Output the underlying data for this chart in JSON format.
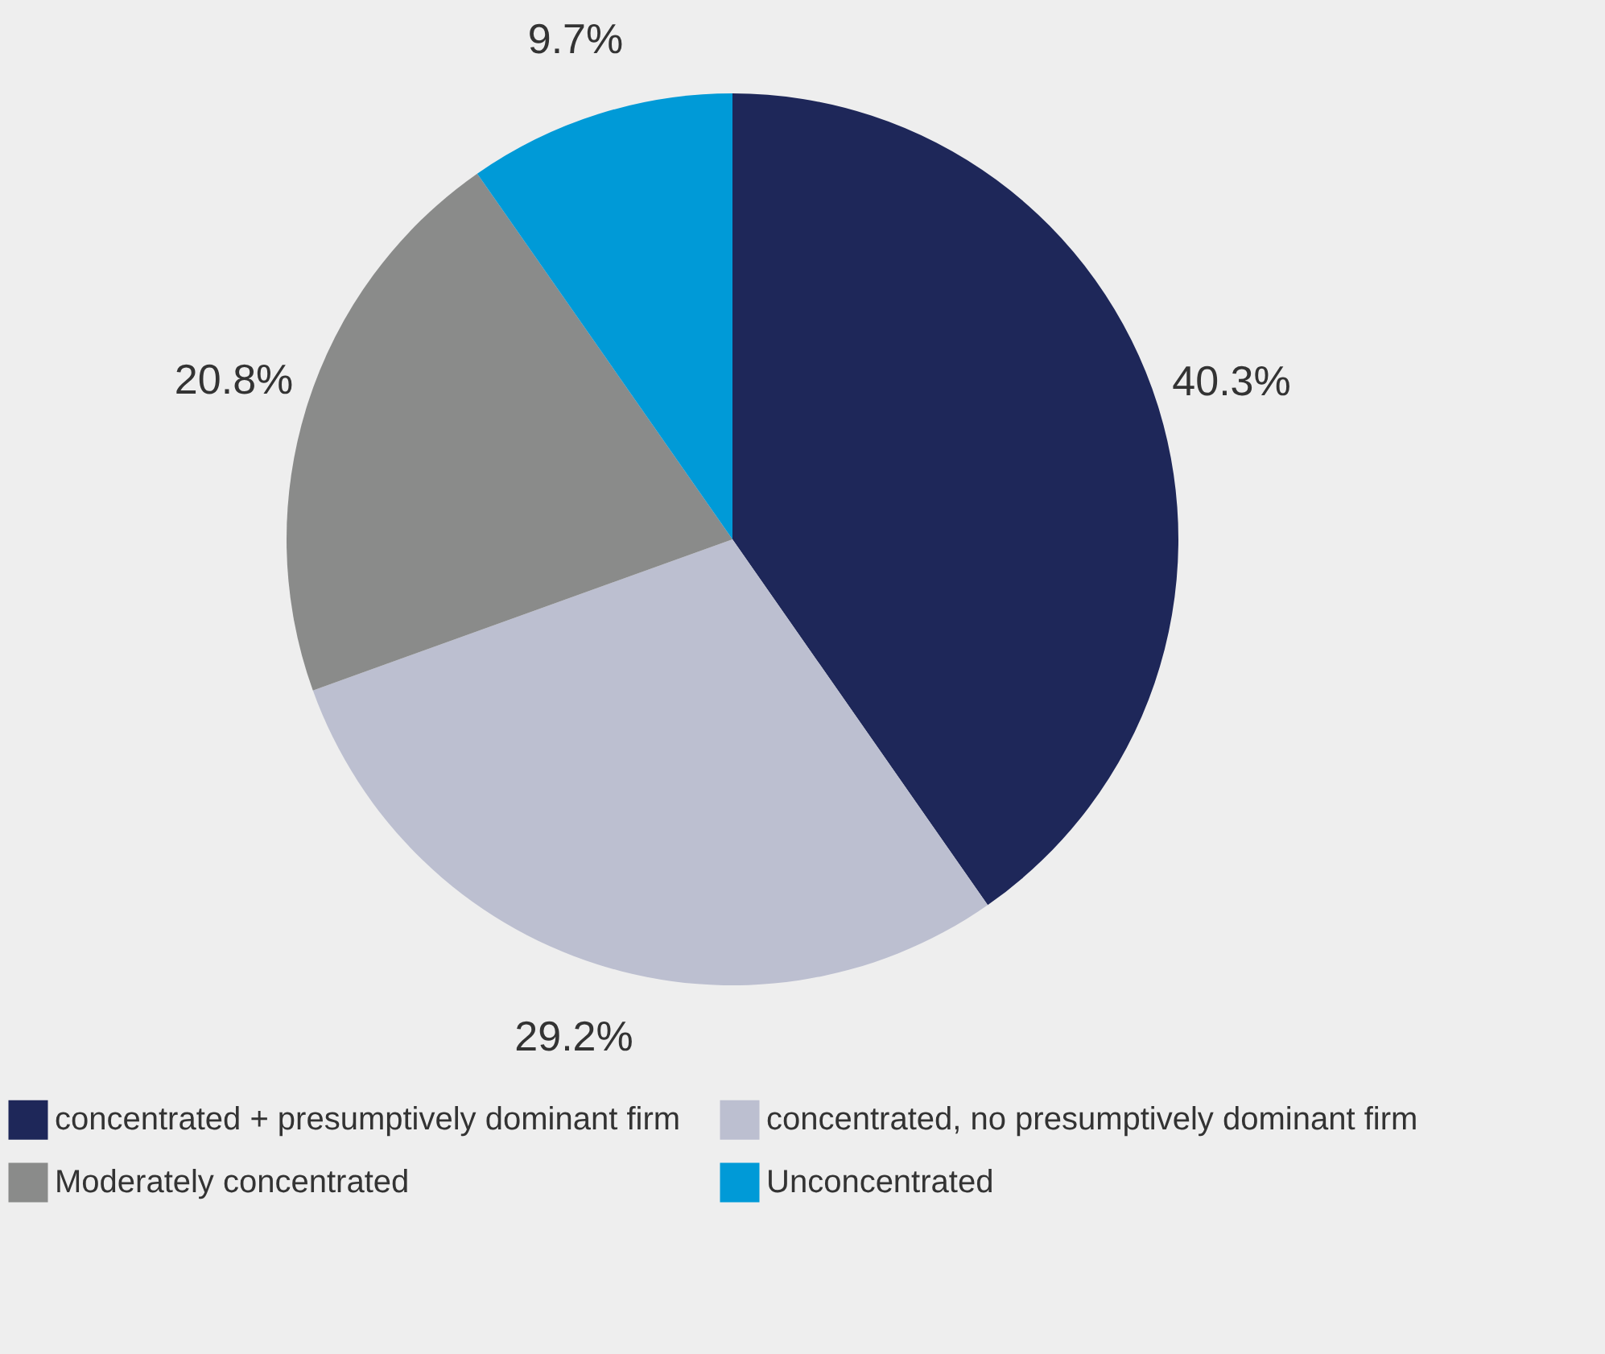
{
  "chart_data": {
    "type": "pie",
    "categories": [
      "concentrated + presumptively dominant firm",
      "concentrated, no presumptively dominant firm",
      "Moderately concentrated",
      "Unconcentrated"
    ],
    "values": [
      40.3,
      29.2,
      20.8,
      9.7
    ],
    "colors": [
      "#1e2759",
      "#bcbfd0",
      "#8a8b8a",
      "#009ad7"
    ],
    "value_labels": [
      "40.3%",
      "29.2%",
      "20.8%",
      "9.7%"
    ],
    "legend": "bottom"
  }
}
